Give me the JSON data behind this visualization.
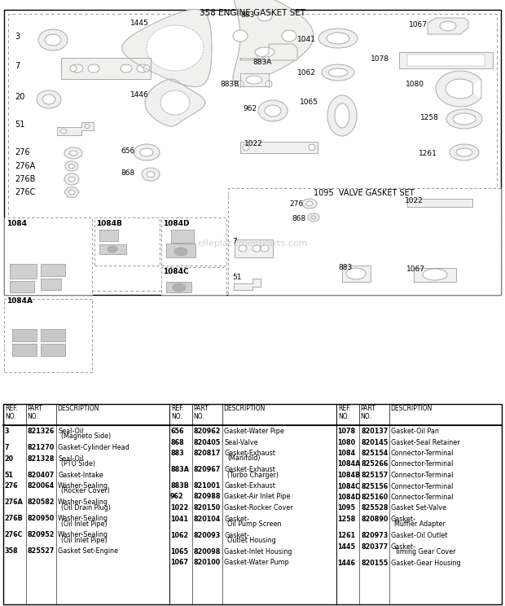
{
  "title_engine": "358 ENGINE GASKET SET",
  "title_valve": "1095  VALVE GASKET SET",
  "bg_color": "#ffffff",
  "watermark": "eReplacementParts.com",
  "col1_data": [
    [
      "3",
      "821326",
      "Seal-Oil",
      "(Magneto Side)"
    ],
    [
      "7",
      "821270",
      "Gasket-Cylinder Head",
      ""
    ],
    [
      "20",
      "821328",
      "Seal-Oil",
      "(PTO Side)"
    ],
    [
      "51",
      "820407",
      "Gasket-Intake",
      ""
    ],
    [
      "276",
      "820064",
      "Washer-Sealing",
      "(Rocker Cover)"
    ],
    [
      "276A",
      "820582",
      "Washer-Sealing",
      "(Oil Drain Plug)"
    ],
    [
      "276B",
      "820950",
      "Washer-Sealing",
      "(Oil Inlet Pipe)"
    ],
    [
      "276C",
      "820952",
      "Washer-Sealing",
      "(Oil Inlet Pipe)"
    ],
    [
      "358",
      "825527",
      "Gasket Set-Engine",
      ""
    ]
  ],
  "col2_data": [
    [
      "656",
      "820962",
      "Gasket-Water Pipe",
      ""
    ],
    [
      "868",
      "820405",
      "Seal-Valve",
      ""
    ],
    [
      "883",
      "820817",
      "Gasket-Exhaust",
      "(Manifold)"
    ],
    [
      "883A",
      "820967",
      "Gasket-Exhaust",
      "(Turbo Charger)"
    ],
    [
      "883B",
      "821001",
      "Gasket-Exhaust",
      ""
    ],
    [
      "962",
      "820988",
      "Gasket-Air Inlet Pipe",
      ""
    ],
    [
      "1022",
      "820150",
      "Gasket-Rocker Cover",
      ""
    ],
    [
      "1041",
      "820104",
      "Gasket-",
      "Oil Pump Screen"
    ],
    [
      "1062",
      "820093",
      "Gasket-",
      "Outlet Housing"
    ],
    [
      "1065",
      "820098",
      "Gasket-Inlet Housing",
      ""
    ],
    [
      "1067",
      "820100",
      "Gasket-Water Pump",
      ""
    ]
  ],
  "col3_data": [
    [
      "1078",
      "820137",
      "Gasket-Oil Pan",
      ""
    ],
    [
      "1080",
      "820145",
      "Gasket-Seal Retainer",
      ""
    ],
    [
      "1084",
      "825154",
      "Connector-Terminal",
      ""
    ],
    [
      "1084A",
      "825266",
      "Connector-Terminal",
      ""
    ],
    [
      "1084B",
      "825157",
      "Connector-Terminal",
      ""
    ],
    [
      "1084C",
      "825156",
      "Connector-Terminal",
      ""
    ],
    [
      "1084D",
      "825160",
      "Connector-Terminal",
      ""
    ],
    [
      "1095",
      "825528",
      "Gasket Set-Valve",
      ""
    ],
    [
      "1258",
      "820890",
      "Gasket-",
      "Muffler Adapter"
    ],
    [
      "1261",
      "820973",
      "Gasket-Oil Outlet",
      ""
    ],
    [
      "1445",
      "820377",
      "Gasket-",
      "Timing Gear Cover"
    ],
    [
      "1446",
      "820155",
      "Gasket-Gear Housing",
      ""
    ]
  ]
}
